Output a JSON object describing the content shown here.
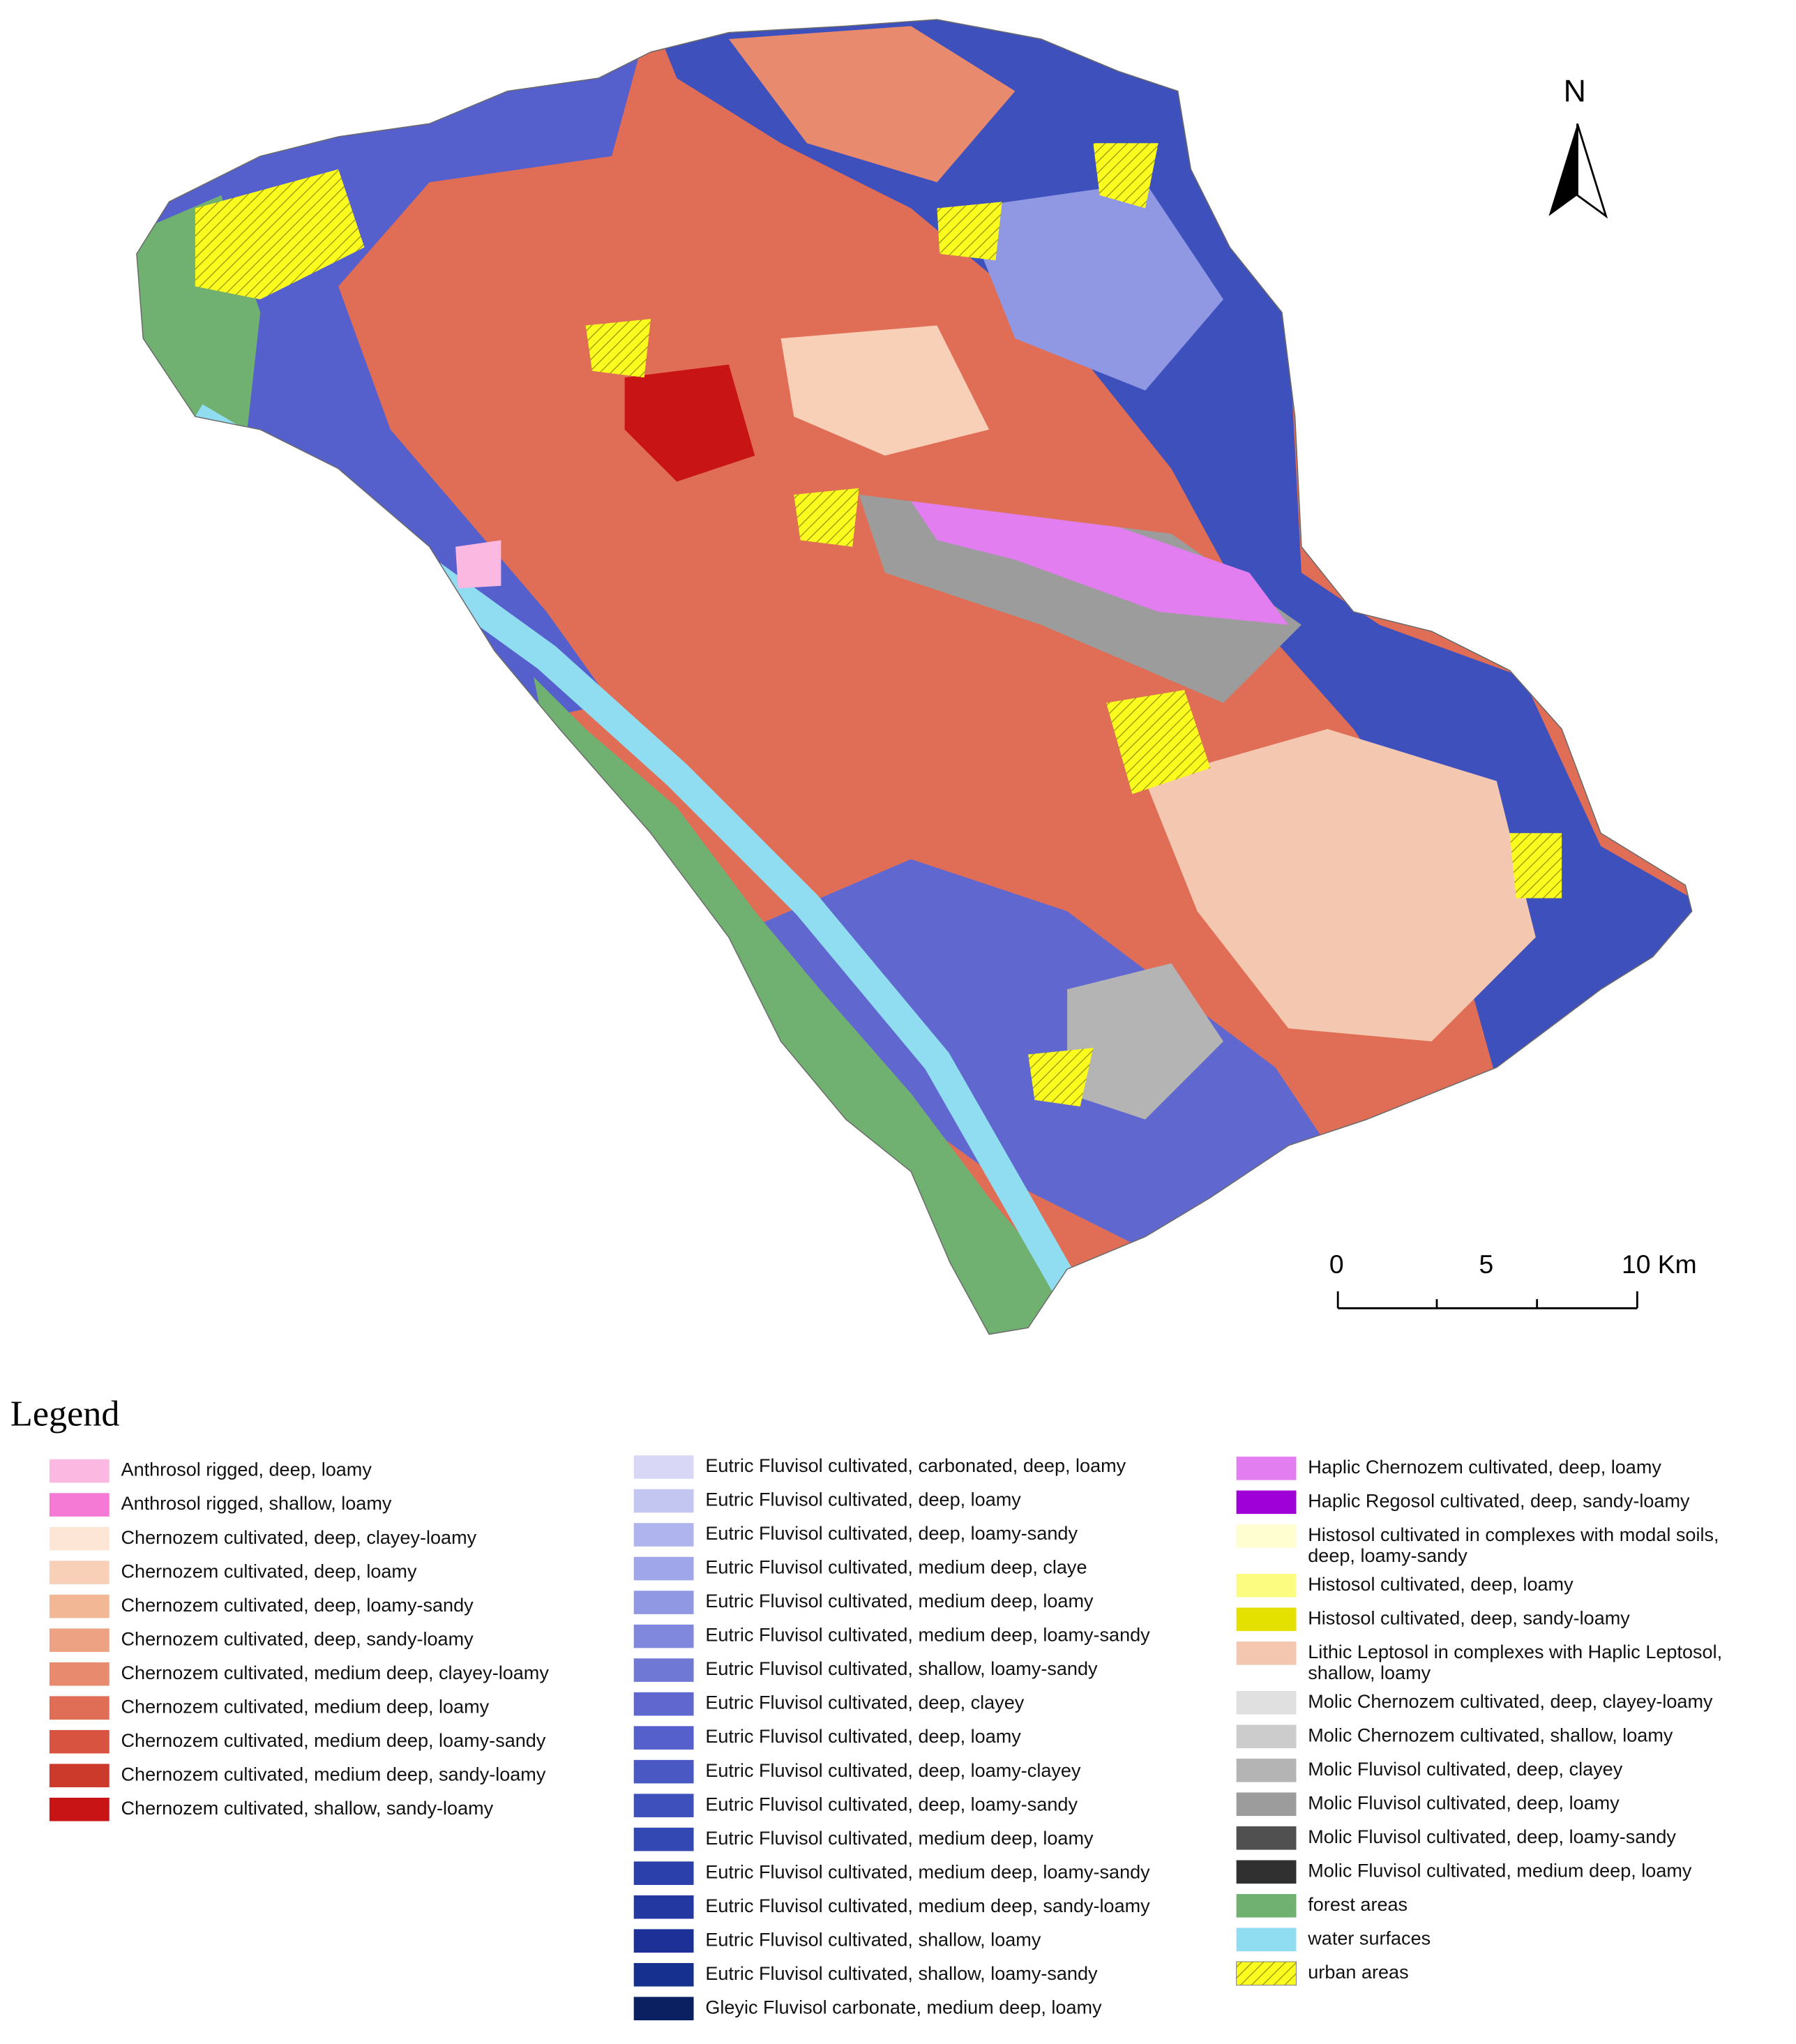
{
  "north": "N",
  "scale_bar": {
    "labels": [
      "0",
      "5",
      "10 Km"
    ]
  },
  "legend": {
    "title": "Legend",
    "columns": [
      [
        {
          "lines": [
            "Anthrosol rigged, deep, loamy"
          ],
          "color": "#fbb8e0"
        },
        {
          "lines": [
            "Anthrosol rigged, shallow, loamy"
          ],
          "color": "#f47ad6"
        },
        {
          "lines": [
            "Chernozem cultivated, deep, clayey-loamy"
          ],
          "color": "#fde6d6"
        },
        {
          "lines": [
            "Chernozem cultivated, deep, loamy"
          ],
          "color": "#f8d0b8"
        },
        {
          "lines": [
            "Chernozem cultivated, deep, loamy-sandy"
          ],
          "color": "#f2b896"
        },
        {
          "lines": [
            "Chernozem cultivated, deep, sandy-loamy"
          ],
          "color": "#eca283"
        },
        {
          "lines": [
            "Chernozem cultivated, medium deep, clayey-loamy"
          ],
          "color": "#e88a6e"
        },
        {
          "lines": [
            "Chernozem cultivated, medium deep, loamy"
          ],
          "color": "#e06e56"
        },
        {
          "lines": [
            "Chernozem cultivated, medium deep, loamy-sandy"
          ],
          "color": "#d85440"
        },
        {
          "lines": [
            "Chernozem cultivated, medium deep, sandy-loamy"
          ],
          "color": "#cc3a2c"
        },
        {
          "lines": [
            "Chernozem cultivated, shallow, sandy-loamy"
          ],
          "color": "#c81414"
        }
      ],
      [
        {
          "lines": [
            "Eutric  Fluvisol cultivated, carbonated, deep, loamy"
          ],
          "color": "#d8d8f6"
        },
        {
          "lines": [
            "Eutric  Fluvisol cultivated, deep, loamy"
          ],
          "color": "#c4c6f2"
        },
        {
          "lines": [
            "Eutric  Fluvisol cultivated, deep, loamy-sandy"
          ],
          "color": "#b0b4ee"
        },
        {
          "lines": [
            "Eutric  Fluvisol cultivated, medium deep, claye"
          ],
          "color": "#a0a6ea"
        },
        {
          "lines": [
            "Eutric  Fluvisol cultivated, medium deep, loamy"
          ],
          "color": "#9098e4"
        },
        {
          "lines": [
            "Eutric  Fluvisol cultivated, medium deep, loamy-sandy"
          ],
          "color": "#8088de"
        },
        {
          "lines": [
            "Eutric  Fluvisol cultivated, shallow, loamy-sandy"
          ],
          "color": "#7078d6"
        },
        {
          "lines": [
            "Eutric Fluvisol cultivated, deep, clayey"
          ],
          "color": "#6068d0"
        },
        {
          "lines": [
            "Eutric Fluvisol cultivated, deep, loamy"
          ],
          "color": "#5660cc"
        },
        {
          "lines": [
            "Eutric Fluvisol cultivated, deep, loamy-clayey"
          ],
          "color": "#4a58c4"
        },
        {
          "lines": [
            "Eutric Fluvisol cultivated, deep, loamy-sandy"
          ],
          "color": "#3e50bc"
        },
        {
          "lines": [
            "Eutric Fluvisol cultivated, medium deep, loamy"
          ],
          "color": "#3448b4"
        },
        {
          "lines": [
            "Eutric Fluvisol cultivated, medium deep, loamy-sandy"
          ],
          "color": "#2c40ac"
        },
        {
          "lines": [
            "Eutric Fluvisol cultivated, medium deep, sandy-loamy"
          ],
          "color": "#2438a2"
        },
        {
          "lines": [
            "Eutric Fluvisol cultivated, shallow, loamy"
          ],
          "color": "#1c3098"
        },
        {
          "lines": [
            "Eutric Fluvisol cultivated, shallow, loamy-sandy"
          ],
          "color": "#163090"
        },
        {
          "lines": [
            "Gleyic Fluvisol carbonate, medium deep, loamy"
          ],
          "color": "#0a2060"
        }
      ],
      [
        {
          "lines": [
            "Haplic Chernozem cultivated, deep, loamy"
          ],
          "color": "#e27ef0"
        },
        {
          "lines": [
            "Haplic Regosol cultivated, deep, sandy-loamy"
          ],
          "color": "#a000d8"
        },
        {
          "lines": [
            "Histosol cultivated in complexes with modal soils,",
            "deep, loamy-sandy"
          ],
          "color": "#fefed0"
        },
        {
          "lines": [
            "Histosol cultivated, deep, loamy"
          ],
          "color": "#fcfc80"
        },
        {
          "lines": [
            "Histosol cultivated, deep, sandy-loamy"
          ],
          "color": "#e4e000"
        },
        {
          "lines": [
            "Lithic Leptosol in complexes with Haplic Leptosol,",
            "shallow, loamy"
          ],
          "color": "#f4c8b0"
        },
        {
          "lines": [
            "Molic Chernozem cultivated, deep, clayey-loamy"
          ],
          "color": "#e0e0e0"
        },
        {
          "lines": [
            "Molic Chernozem cultivated, shallow, loamy"
          ],
          "color": "#cccccc"
        },
        {
          "lines": [
            "Molic Fluvisol cultivated, deep, clayey"
          ],
          "color": "#b4b4b4"
        },
        {
          "lines": [
            "Molic Fluvisol cultivated, deep, loamy"
          ],
          "color": "#9c9c9c"
        },
        {
          "lines": [
            "Molic Fluvisol cultivated, deep, loamy-sandy"
          ],
          "color": "#505050"
        },
        {
          "lines": [
            "Molic Fluvisol cultivated, medium deep, loamy"
          ],
          "color": "#303030"
        },
        {
          "lines": [
            "forest areas"
          ],
          "color": "#70b070"
        },
        {
          "lines": [
            "water surfaces"
          ],
          "color": "#90dcf0"
        },
        {
          "lines": [
            "urban areas"
          ],
          "color": "#fbfb20",
          "pattern": "hatch"
        }
      ]
    ]
  }
}
